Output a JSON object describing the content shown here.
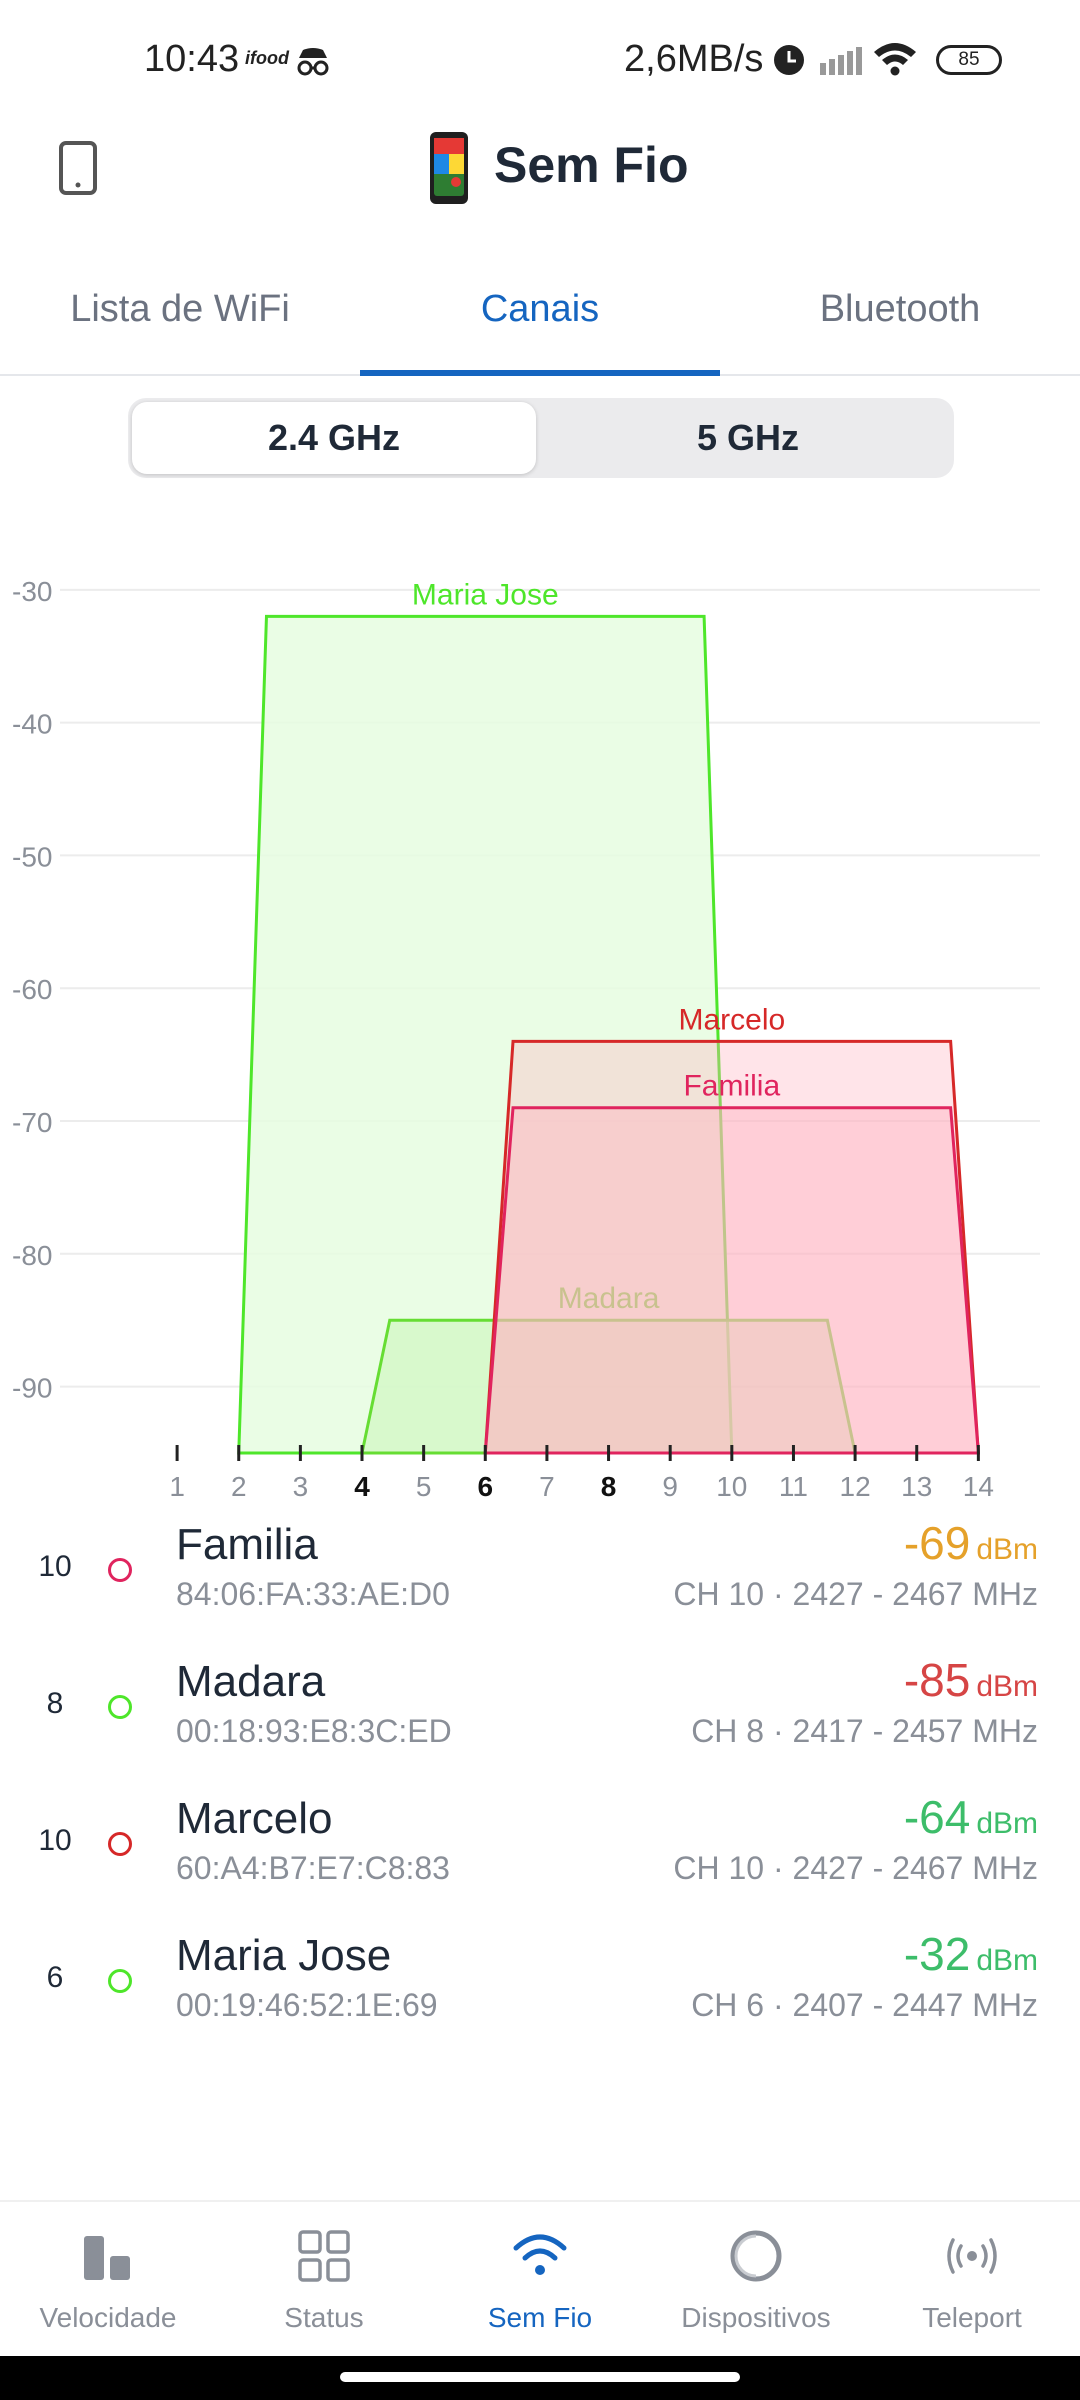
{
  "status_bar": {
    "time": "10:43",
    "app_indicator": "ifood",
    "net_speed": "2,6MB/s",
    "battery": "85"
  },
  "header": {
    "title": "Sem Fio"
  },
  "tabs": [
    {
      "label": "Lista de WiFi",
      "active": false
    },
    {
      "label": "Canais",
      "active": true
    },
    {
      "label": "Bluetooth",
      "active": false
    }
  ],
  "band_selector": {
    "options": [
      "2.4 GHz",
      "5 GHz"
    ],
    "selected": "2.4 GHz"
  },
  "chart_data": {
    "type": "area",
    "x": {
      "label": "",
      "ticks": [
        1,
        2,
        3,
        4,
        5,
        6,
        7,
        8,
        9,
        10,
        11,
        12,
        13,
        14
      ],
      "bold_ticks": [
        4,
        6,
        8
      ],
      "range": [
        -0.9,
        15
      ]
    },
    "y": {
      "label": "",
      "ticks": [
        -30,
        -40,
        -50,
        -60,
        -70,
        -80,
        -90
      ],
      "range": [
        -95,
        -27
      ]
    },
    "grid": true,
    "series": [
      {
        "name": "Maria Jose",
        "channel": 6,
        "span": [
          2,
          10
        ],
        "dbm": -32,
        "stroke": "#4ee62a",
        "fill": "#e6fde0",
        "fill_opacity": 0.85
      },
      {
        "name": "Madara",
        "channel": 8,
        "span": [
          4,
          12
        ],
        "dbm": -85,
        "stroke": "#66dd33",
        "fill": "#c9f5b8",
        "fill_opacity": 0.55
      },
      {
        "name": "Marcelo",
        "channel": 10,
        "span": [
          6,
          14
        ],
        "dbm": -64,
        "stroke": "#d62828",
        "fill": "#ffb3c1",
        "fill_opacity": 0.35
      },
      {
        "name": "Familia",
        "channel": 10,
        "span": [
          6,
          14
        ],
        "dbm": -69,
        "stroke": "#e0245e",
        "fill": "#ffb3c1",
        "fill_opacity": 0.45
      }
    ]
  },
  "networks": [
    {
      "channel": "10",
      "name": "Familia",
      "mac": "84:06:FA:33:AE:D0",
      "dbm": "-69",
      "unit": "dBm",
      "dbm_color": "#e5a12a",
      "dot_color": "#e0245e",
      "ch_info": "CH 10 · 2427 - 2467 MHz"
    },
    {
      "channel": "8",
      "name": "Madara",
      "mac": "00:18:93:E8:3C:ED",
      "dbm": "-85",
      "unit": "dBm",
      "dbm_color": "#d64545",
      "dot_color": "#4ee62a",
      "ch_info": "CH 8 · 2417 - 2457 MHz"
    },
    {
      "channel": "10",
      "name": "Marcelo",
      "mac": "60:A4:B7:E7:C8:83",
      "dbm": "-64",
      "unit": "dBm",
      "dbm_color": "#3dbd6a",
      "dot_color": "#d62828",
      "ch_info": "CH 10 · 2427 - 2467 MHz"
    },
    {
      "channel": "6",
      "name": "Maria Jose",
      "mac": "00:19:46:52:1E:69",
      "dbm": "-32",
      "unit": "dBm",
      "dbm_color": "#3dbd6a",
      "dot_color": "#4ee62a",
      "ch_info": "CH 6 · 2407 - 2447 MHz"
    }
  ],
  "bottom_nav": [
    {
      "label": "Velocidade",
      "icon": "speed-bars-icon",
      "active": false
    },
    {
      "label": "Status",
      "icon": "grid-icon",
      "active": false
    },
    {
      "label": "Sem Fio",
      "icon": "wifi-icon",
      "active": true
    },
    {
      "label": "Dispositivos",
      "icon": "circle-icon",
      "active": false
    },
    {
      "label": "Teleport",
      "icon": "teleport-icon",
      "active": false
    }
  ],
  "colors": {
    "accent": "#1565c0"
  }
}
